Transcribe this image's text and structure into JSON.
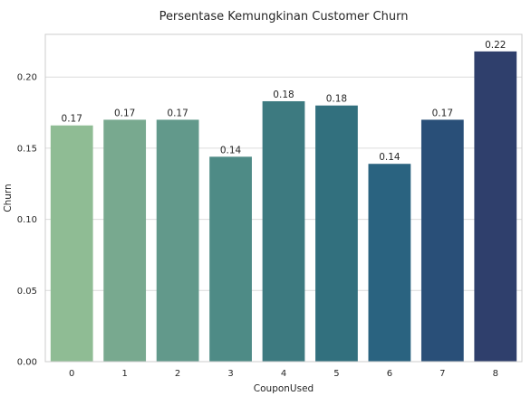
{
  "chart_data": {
    "type": "bar",
    "title": "Persentase Kemungkinan Customer Churn",
    "xlabel": "CouponUsed",
    "ylabel": "Churn",
    "categories": [
      "0",
      "1",
      "2",
      "3",
      "4",
      "5",
      "6",
      "7",
      "8"
    ],
    "values": [
      0.166,
      0.17,
      0.17,
      0.144,
      0.183,
      0.18,
      0.139,
      0.17,
      0.218
    ],
    "data_labels": [
      "0.17",
      "0.17",
      "0.17",
      "0.14",
      "0.18",
      "0.18",
      "0.14",
      "0.17",
      "0.22"
    ],
    "ylim": [
      0,
      0.23
    ],
    "yticks": [
      0.0,
      0.05,
      0.1,
      0.15,
      0.2
    ],
    "ytick_labels": [
      "0.00",
      "0.05",
      "0.10",
      "0.15",
      "0.20"
    ],
    "grid": "y",
    "colors": [
      "#8fbc94",
      "#78a98f",
      "#62998b",
      "#4e8b86",
      "#3d7a80",
      "#32707e",
      "#2a6380",
      "#294f78",
      "#2f3f6c"
    ]
  }
}
